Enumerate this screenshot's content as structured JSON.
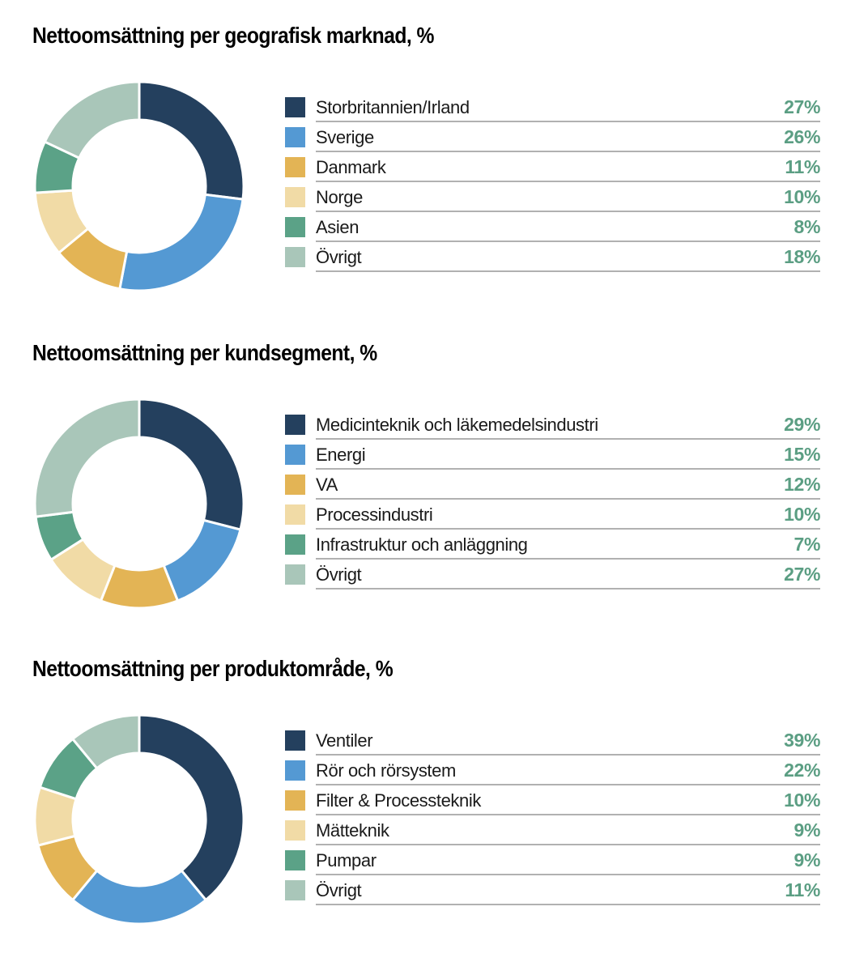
{
  "styles": {
    "background": "#ffffff",
    "title_color": "#000000",
    "label_color": "#1a1a1a",
    "percent_color": "#5b9e83",
    "divider_color": "#b1b1b1",
    "slice_gap_color": "#ffffff"
  },
  "chart_data": [
    {
      "type": "pie",
      "subtype": "donut",
      "title": "Nettoomsättning per geografisk marknad, %",
      "categories": [
        "Storbritannien/Irland",
        "Sverige",
        "Danmark",
        "Norge",
        "Asien",
        "Övrigt"
      ],
      "values": [
        27,
        26,
        11,
        10,
        8,
        18
      ],
      "value_labels": [
        "27%",
        "26%",
        "11%",
        "10%",
        "8%",
        "18%"
      ],
      "colors": [
        "#24405e",
        "#5499d3",
        "#e3b455",
        "#f1dba6",
        "#5ba287",
        "#a9c6b9"
      ],
      "legend_position": "right",
      "start_angle_deg": -90,
      "direction": "clockwise"
    },
    {
      "type": "pie",
      "subtype": "donut",
      "title": "Nettoomsättning per kundsegment, %",
      "categories": [
        "Medicinteknik och läkemedelsindustri",
        "Energi",
        "VA",
        "Processindustri",
        "Infrastruktur och anläggning",
        "Övrigt"
      ],
      "values": [
        29,
        15,
        12,
        10,
        7,
        27
      ],
      "value_labels": [
        "29%",
        "15%",
        "12%",
        "10%",
        "7%",
        "27%"
      ],
      "colors": [
        "#24405e",
        "#5499d3",
        "#e3b455",
        "#f1dba6",
        "#5ba287",
        "#a9c6b9"
      ],
      "legend_position": "right",
      "start_angle_deg": -90,
      "direction": "clockwise"
    },
    {
      "type": "pie",
      "subtype": "donut",
      "title": "Nettoomsättning per produktområde, %",
      "categories": [
        "Ventiler",
        "Rör och rörsystem",
        "Filter & Processteknik",
        "Mätteknik",
        "Pumpar",
        "Övrigt"
      ],
      "values": [
        39,
        22,
        10,
        9,
        9,
        11
      ],
      "value_labels": [
        "39%",
        "22%",
        "10%",
        "9%",
        "9%",
        "11%"
      ],
      "colors": [
        "#24405e",
        "#5499d3",
        "#e3b455",
        "#f1dba6",
        "#5ba287",
        "#a9c6b9"
      ],
      "legend_position": "right",
      "start_angle_deg": -90,
      "direction": "clockwise"
    }
  ]
}
